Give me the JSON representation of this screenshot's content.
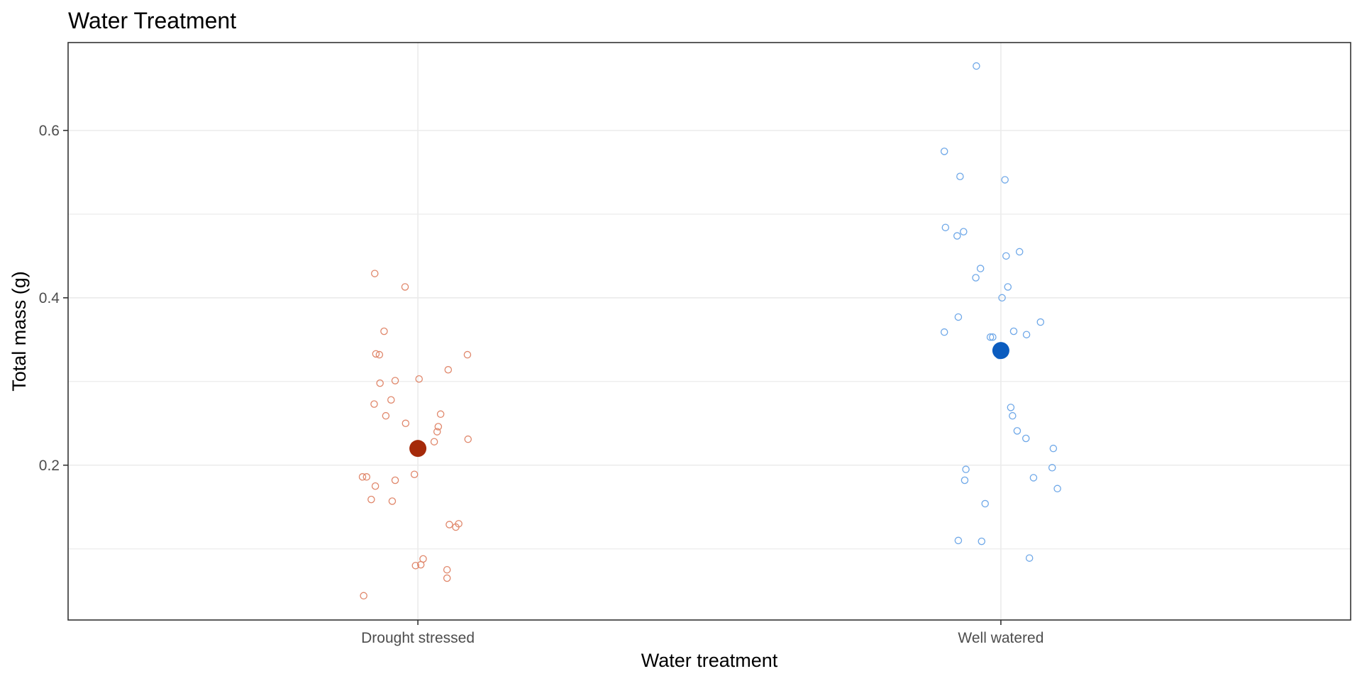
{
  "chart_data": {
    "type": "scatter",
    "title": "Water Treatment",
    "xlabel": "Water treatment",
    "ylabel": "Total mass (g)",
    "categories": [
      "Drought stressed",
      "Well watered"
    ],
    "ylim": [
      0.015,
      0.705
    ],
    "yticks": [
      0.2,
      0.4,
      0.6
    ],
    "ytick_labels": [
      "0.2",
      "0.4",
      "0.6"
    ],
    "y_minor_gridlines": [
      0.1,
      0.3,
      0.5
    ],
    "grid": true,
    "legend": "none",
    "colors": {
      "drought_points": "#e0876b",
      "drought_mean": "#a52a0a",
      "watered_points": "#6fa8e8",
      "watered_mean": "#0b5cbf",
      "gridline": "#ebebeb",
      "panel_border": "#333333"
    },
    "series": [
      {
        "category": "Drought stressed",
        "mean": 0.22,
        "points": [
          {
            "x": -0.074,
            "y": 0.429
          },
          {
            "x": -0.022,
            "y": 0.413
          },
          {
            "x": -0.058,
            "y": 0.36
          },
          {
            "x": -0.072,
            "y": 0.333
          },
          {
            "x": -0.066,
            "y": 0.332
          },
          {
            "x": 0.085,
            "y": 0.332
          },
          {
            "x": 0.052,
            "y": 0.314
          },
          {
            "x": 0.002,
            "y": 0.303
          },
          {
            "x": -0.039,
            "y": 0.301
          },
          {
            "x": -0.065,
            "y": 0.298
          },
          {
            "x": -0.046,
            "y": 0.278
          },
          {
            "x": -0.075,
            "y": 0.273
          },
          {
            "x": 0.039,
            "y": 0.261
          },
          {
            "x": -0.055,
            "y": 0.259
          },
          {
            "x": -0.021,
            "y": 0.25
          },
          {
            "x": 0.035,
            "y": 0.246
          },
          {
            "x": 0.033,
            "y": 0.24
          },
          {
            "x": 0.028,
            "y": 0.228
          },
          {
            "x": 0.086,
            "y": 0.231
          },
          {
            "x": -0.006,
            "y": 0.189
          },
          {
            "x": -0.095,
            "y": 0.186
          },
          {
            "x": -0.088,
            "y": 0.186
          },
          {
            "x": -0.039,
            "y": 0.182
          },
          {
            "x": -0.073,
            "y": 0.175
          },
          {
            "x": -0.08,
            "y": 0.159
          },
          {
            "x": -0.044,
            "y": 0.157
          },
          {
            "x": 0.054,
            "y": 0.129
          },
          {
            "x": 0.07,
            "y": 0.13
          },
          {
            "x": 0.065,
            "y": 0.126
          },
          {
            "x": 0.009,
            "y": 0.088
          },
          {
            "x": -0.004,
            "y": 0.08
          },
          {
            "x": 0.005,
            "y": 0.081
          },
          {
            "x": 0.05,
            "y": 0.075
          },
          {
            "x": 0.05,
            "y": 0.065
          },
          {
            "x": -0.093,
            "y": 0.044
          }
        ]
      },
      {
        "category": "Well watered",
        "mean": 0.337,
        "points": [
          {
            "x": -0.042,
            "y": 0.677
          },
          {
            "x": -0.097,
            "y": 0.575
          },
          {
            "x": -0.07,
            "y": 0.545
          },
          {
            "x": 0.007,
            "y": 0.541
          },
          {
            "x": -0.095,
            "y": 0.484
          },
          {
            "x": -0.064,
            "y": 0.479
          },
          {
            "x": -0.075,
            "y": 0.474
          },
          {
            "x": 0.032,
            "y": 0.455
          },
          {
            "x": 0.009,
            "y": 0.45
          },
          {
            "x": -0.035,
            "y": 0.435
          },
          {
            "x": -0.043,
            "y": 0.424
          },
          {
            "x": 0.012,
            "y": 0.413
          },
          {
            "x": 0.002,
            "y": 0.4
          },
          {
            "x": -0.073,
            "y": 0.377
          },
          {
            "x": 0.068,
            "y": 0.371
          },
          {
            "x": -0.097,
            "y": 0.359
          },
          {
            "x": 0.022,
            "y": 0.36
          },
          {
            "x": 0.044,
            "y": 0.356
          },
          {
            "x": -0.018,
            "y": 0.353
          },
          {
            "x": -0.014,
            "y": 0.353
          },
          {
            "x": -0.003,
            "y": 0.331
          },
          {
            "x": 0.017,
            "y": 0.269
          },
          {
            "x": 0.02,
            "y": 0.259
          },
          {
            "x": 0.028,
            "y": 0.241
          },
          {
            "x": 0.043,
            "y": 0.232
          },
          {
            "x": 0.09,
            "y": 0.22
          },
          {
            "x": 0.088,
            "y": 0.197
          },
          {
            "x": -0.06,
            "y": 0.195
          },
          {
            "x": 0.056,
            "y": 0.185
          },
          {
            "x": -0.062,
            "y": 0.182
          },
          {
            "x": 0.097,
            "y": 0.172
          },
          {
            "x": -0.027,
            "y": 0.154
          },
          {
            "x": -0.073,
            "y": 0.11
          },
          {
            "x": -0.033,
            "y": 0.109
          },
          {
            "x": 0.049,
            "y": 0.089
          }
        ]
      }
    ]
  }
}
